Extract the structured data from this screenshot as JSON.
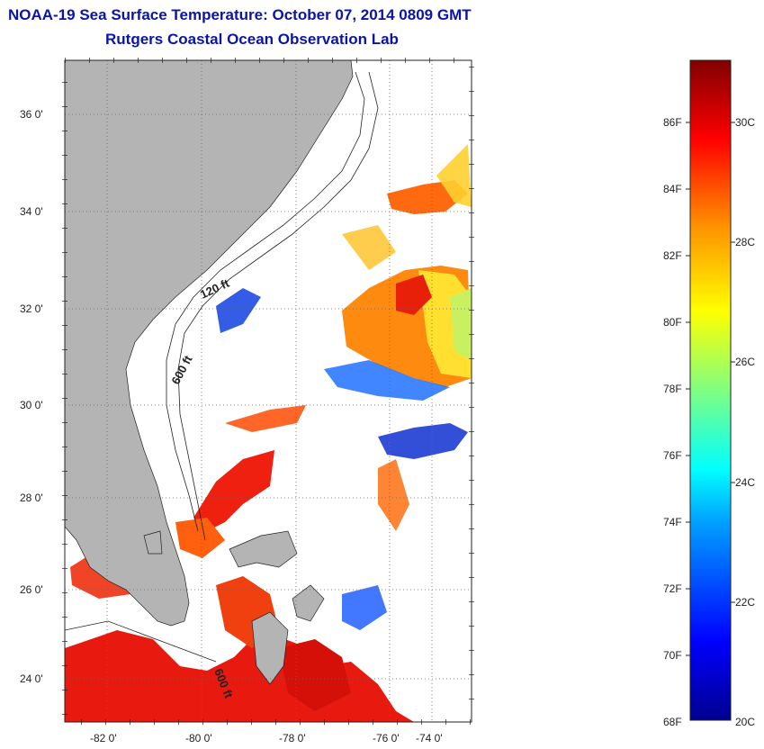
{
  "header": {
    "title": "NOAA-19 Sea Surface Temperature:  October 07, 2014 0809 GMT",
    "subtitle": "Rutgers Coastal Ocean Observation Lab"
  },
  "map": {
    "lat_labels": [
      "36 0'",
      "34 0'",
      "32 0'",
      "30 0'",
      "28 0'",
      "26 0'",
      "24 0'"
    ],
    "lon_labels": [
      "-82 0'",
      "-80 0'",
      "-78 0'",
      "-76 0'",
      "-74 0'"
    ],
    "contour_labels": [
      "120 ft",
      "600 ft",
      "600 ft"
    ]
  },
  "colorbar": {
    "fahrenheit_labels": [
      "86F",
      "84F",
      "82F",
      "80F",
      "78F",
      "76F",
      "74F",
      "72F",
      "70F",
      "68F"
    ],
    "celsius_labels": [
      "30C",
      "28C",
      "26C",
      "24C",
      "22C",
      "20C"
    ]
  },
  "colors": {
    "title": "#0a14a8",
    "land": "#b4b4b4",
    "sea_no_data": "#ffffff"
  }
}
